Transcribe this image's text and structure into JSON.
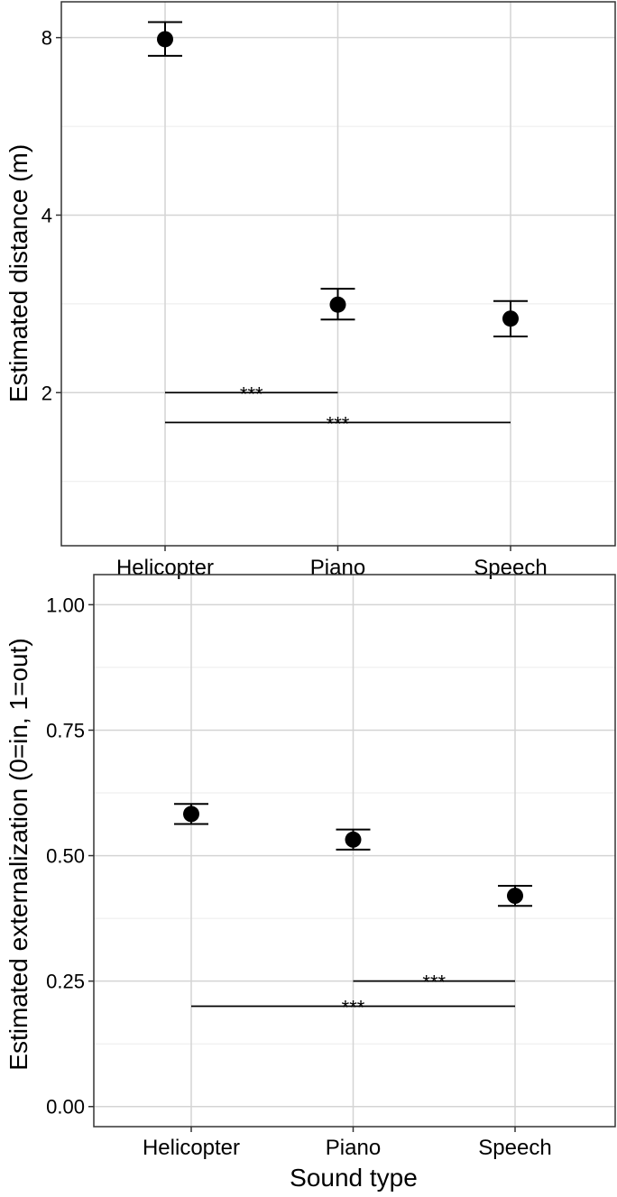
{
  "chart_data": [
    {
      "type": "scatter",
      "ylabel": "Estimated distance (m)",
      "xlabel": "",
      "categories": [
        "Helicopter",
        "Piano",
        "Speech"
      ],
      "y_scale": "log2",
      "ylim": [
        1.1,
        9.2
      ],
      "y_major_ticks": [
        2,
        4,
        8
      ],
      "y_tick_labels": [
        "2",
        "4",
        "8"
      ],
      "y_minor_ticks": [
        1.414,
        2.828,
        5.657
      ],
      "grid": true,
      "series": [
        {
          "values": [
            7.95,
            2.82,
            2.67
          ],
          "error_low": [
            7.45,
            2.66,
            2.49
          ],
          "error_high": [
            8.5,
            3.0,
            2.86
          ]
        }
      ],
      "annotations": [
        {
          "text": "***",
          "from": "Helicopter",
          "to": "Piano",
          "y": 2.0
        },
        {
          "text": "***",
          "from": "Helicopter",
          "to": "Speech",
          "y": 1.78
        }
      ]
    },
    {
      "type": "scatter",
      "ylabel": "Estimated externalization (0=in, 1=out)",
      "xlabel": "Sound type",
      "categories": [
        "Helicopter",
        "Piano",
        "Speech"
      ],
      "ylim": [
        -0.04,
        1.06
      ],
      "y_major_ticks": [
        0,
        0.25,
        0.5,
        0.75,
        1.0
      ],
      "y_tick_labels": [
        "0.00",
        "0.25",
        "0.50",
        "0.75",
        "1.00"
      ],
      "y_minor_ticks": [
        0.125,
        0.375,
        0.625,
        0.875
      ],
      "grid": true,
      "series": [
        {
          "values": [
            0.583,
            0.532,
            0.42
          ],
          "error_low": [
            0.563,
            0.512,
            0.4
          ],
          "error_high": [
            0.603,
            0.552,
            0.44
          ]
        }
      ],
      "annotations": [
        {
          "text": "***",
          "from": "Piano",
          "to": "Speech",
          "y": 0.25
        },
        {
          "text": "***",
          "from": "Helicopter",
          "to": "Speech",
          "y": 0.2
        }
      ]
    }
  ]
}
